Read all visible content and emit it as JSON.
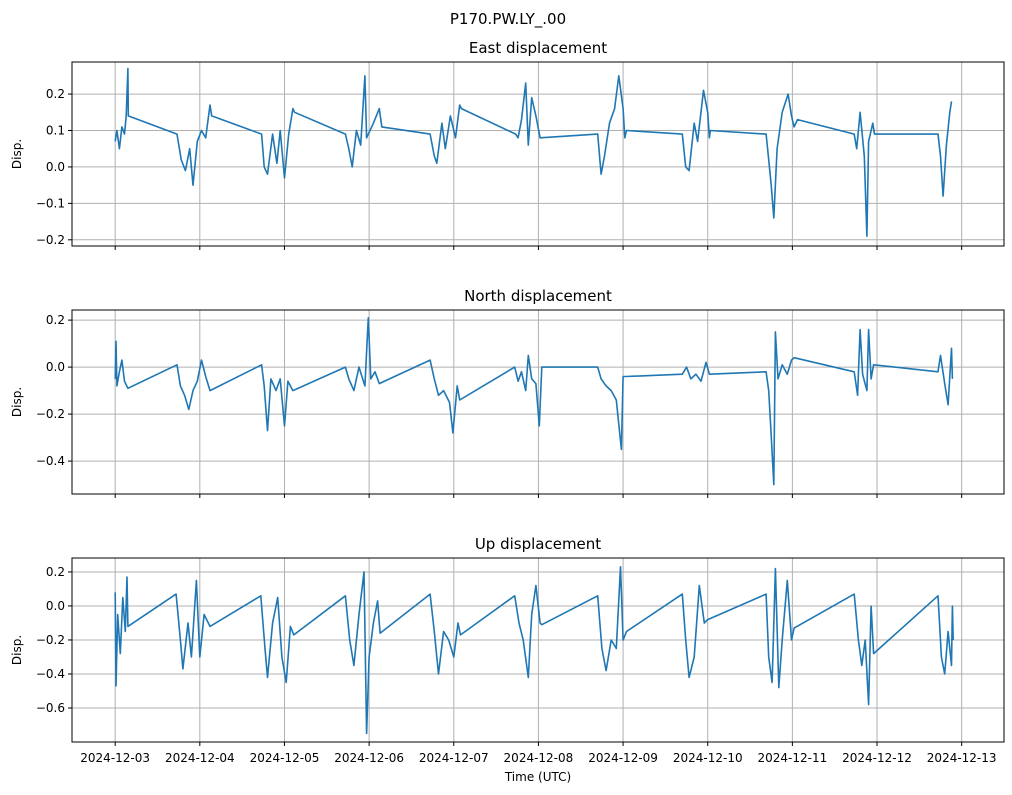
{
  "figure_title": "P170.PW.LY_.00",
  "chart_data": [
    {
      "type": "line",
      "title": "East displacement",
      "ylabel": "Disp.",
      "xlabel": "",
      "x_unit": "days since 2024-12-03 00:00 UTC",
      "xlim": [
        -0.51,
        10.5
      ],
      "ylim": [
        -0.217,
        0.288
      ],
      "yticks": [
        0.2,
        0.1,
        0.0,
        -0.1,
        -0.2
      ],
      "ytick_labels": [
        "0.2",
        "0.1",
        "0.0",
        "−0.1",
        "−0.2"
      ],
      "grid": true,
      "color": "#1f77b4",
      "points": [
        [
          0,
          0.07
        ],
        [
          0.02,
          0.1
        ],
        [
          0.05,
          0.05
        ],
        [
          0.08,
          0.11
        ],
        [
          0.11,
          0.09
        ],
        [
          0.13,
          0.14
        ],
        [
          0.15,
          0.27
        ],
        [
          0.155,
          0.14
        ],
        [
          0.73,
          0.09
        ],
        [
          0.78,
          0.02
        ],
        [
          0.83,
          -0.01
        ],
        [
          0.88,
          0.05
        ],
        [
          0.92,
          -0.05
        ],
        [
          0.97,
          0.07
        ],
        [
          1.02,
          0.1
        ],
        [
          1.07,
          0.08
        ],
        [
          1.12,
          0.17
        ],
        [
          1.14,
          0.14
        ],
        [
          1.73,
          0.09
        ],
        [
          1.76,
          0.0
        ],
        [
          1.8,
          -0.02
        ],
        [
          1.86,
          0.09
        ],
        [
          1.91,
          0.01
        ],
        [
          1.95,
          0.1
        ],
        [
          2.0,
          -0.03
        ],
        [
          2.05,
          0.09
        ],
        [
          2.1,
          0.16
        ],
        [
          2.12,
          0.15
        ],
        [
          2.72,
          0.09
        ],
        [
          2.76,
          0.05
        ],
        [
          2.8,
          0.0
        ],
        [
          2.85,
          0.1
        ],
        [
          2.9,
          0.06
        ],
        [
          2.95,
          0.25
        ],
        [
          2.97,
          0.08
        ],
        [
          3.05,
          0.12
        ],
        [
          3.12,
          0.16
        ],
        [
          3.15,
          0.11
        ],
        [
          3.72,
          0.09
        ],
        [
          3.77,
          0.03
        ],
        [
          3.8,
          0.01
        ],
        [
          3.86,
          0.12
        ],
        [
          3.9,
          0.05
        ],
        [
          3.96,
          0.14
        ],
        [
          4.02,
          0.08
        ],
        [
          4.07,
          0.17
        ],
        [
          4.09,
          0.16
        ],
        [
          4.73,
          0.09
        ],
        [
          4.76,
          0.08
        ],
        [
          4.8,
          0.13
        ],
        [
          4.85,
          0.23
        ],
        [
          4.88,
          0.06
        ],
        [
          4.92,
          0.19
        ],
        [
          4.97,
          0.14
        ],
        [
          5.02,
          0.08
        ],
        [
          5.7,
          0.09
        ],
        [
          5.74,
          -0.02
        ],
        [
          5.78,
          0.03
        ],
        [
          5.84,
          0.12
        ],
        [
          5.9,
          0.16
        ],
        [
          5.95,
          0.25
        ],
        [
          6.0,
          0.16
        ],
        [
          6.02,
          0.08
        ],
        [
          6.04,
          0.1
        ],
        [
          6.7,
          0.09
        ],
        [
          6.74,
          0.0
        ],
        [
          6.78,
          -0.01
        ],
        [
          6.84,
          0.12
        ],
        [
          6.88,
          0.07
        ],
        [
          6.95,
          0.21
        ],
        [
          7.0,
          0.15
        ],
        [
          7.02,
          0.08
        ],
        [
          7.03,
          0.1
        ],
        [
          7.69,
          0.09
        ],
        [
          7.72,
          0.02
        ],
        [
          7.75,
          -0.05
        ],
        [
          7.78,
          -0.14
        ],
        [
          7.82,
          0.05
        ],
        [
          7.88,
          0.15
        ],
        [
          7.95,
          0.2
        ],
        [
          7.99,
          0.14
        ],
        [
          8.02,
          0.11
        ],
        [
          8.06,
          0.13
        ],
        [
          8.73,
          0.09
        ],
        [
          8.76,
          0.05
        ],
        [
          8.8,
          0.15
        ],
        [
          8.85,
          0.03
        ],
        [
          8.88,
          -0.19
        ],
        [
          8.9,
          0.07
        ],
        [
          8.95,
          0.12
        ],
        [
          8.97,
          0.09
        ],
        [
          9.72,
          0.09
        ],
        [
          9.75,
          0.03
        ],
        [
          9.78,
          -0.08
        ],
        [
          9.82,
          0.06
        ],
        [
          9.86,
          0.15
        ],
        [
          9.88,
          0.18
        ]
      ]
    },
    {
      "type": "line",
      "title": "North displacement",
      "ylabel": "Disp.",
      "xlabel": "",
      "x_unit": "days since 2024-12-03 00:00 UTC",
      "xlim": [
        -0.51,
        10.5
      ],
      "ylim": [
        -0.54,
        0.243
      ],
      "yticks": [
        0.2,
        0.0,
        -0.2,
        -0.4
      ],
      "ytick_labels": [
        "0.2",
        "0.0",
        "−0.2",
        "−0.4"
      ],
      "grid": true,
      "color": "#1f77b4",
      "points": [
        [
          0,
          -0.05
        ],
        [
          0.01,
          0.11
        ],
        [
          0.02,
          -0.08
        ],
        [
          0.05,
          -0.02
        ],
        [
          0.08,
          0.03
        ],
        [
          0.11,
          -0.06
        ],
        [
          0.15,
          -0.09
        ],
        [
          0.73,
          0.01
        ],
        [
          0.77,
          -0.08
        ],
        [
          0.82,
          -0.12
        ],
        [
          0.87,
          -0.18
        ],
        [
          0.92,
          -0.1
        ],
        [
          0.97,
          -0.06
        ],
        [
          1.02,
          0.03
        ],
        [
          1.07,
          -0.04
        ],
        [
          1.12,
          -0.1
        ],
        [
          1.73,
          0.01
        ],
        [
          1.76,
          -0.08
        ],
        [
          1.8,
          -0.27
        ],
        [
          1.84,
          -0.05
        ],
        [
          1.9,
          -0.1
        ],
        [
          1.95,
          -0.05
        ],
        [
          2.0,
          -0.25
        ],
        [
          2.04,
          -0.06
        ],
        [
          2.1,
          -0.1
        ],
        [
          2.72,
          0.0
        ],
        [
          2.76,
          -0.05
        ],
        [
          2.82,
          -0.1
        ],
        [
          2.88,
          0.0
        ],
        [
          2.95,
          -0.08
        ],
        [
          2.99,
          0.21
        ],
        [
          3.02,
          -0.05
        ],
        [
          3.07,
          -0.02
        ],
        [
          3.12,
          -0.07
        ],
        [
          3.72,
          0.03
        ],
        [
          3.77,
          -0.05
        ],
        [
          3.82,
          -0.12
        ],
        [
          3.88,
          -0.1
        ],
        [
          3.95,
          -0.15
        ],
        [
          3.99,
          -0.28
        ],
        [
          4.04,
          -0.08
        ],
        [
          4.07,
          -0.14
        ],
        [
          4.72,
          0.0
        ],
        [
          4.76,
          -0.06
        ],
        [
          4.8,
          -0.02
        ],
        [
          4.85,
          -0.1
        ],
        [
          4.88,
          0.05
        ],
        [
          4.92,
          -0.05
        ],
        [
          4.97,
          -0.07
        ],
        [
          5.01,
          -0.25
        ],
        [
          5.04,
          0.0
        ],
        [
          5.7,
          0.0
        ],
        [
          5.74,
          -0.05
        ],
        [
          5.8,
          -0.08
        ],
        [
          5.86,
          -0.1
        ],
        [
          5.92,
          -0.14
        ],
        [
          5.98,
          -0.35
        ],
        [
          6.0,
          -0.04
        ],
        [
          6.04,
          -0.04
        ],
        [
          6.7,
          -0.03
        ],
        [
          6.75,
          0.0
        ],
        [
          6.8,
          -0.05
        ],
        [
          6.86,
          -0.03
        ],
        [
          6.92,
          -0.06
        ],
        [
          6.98,
          0.02
        ],
        [
          7.02,
          -0.03
        ],
        [
          7.69,
          -0.02
        ],
        [
          7.72,
          -0.1
        ],
        [
          7.75,
          -0.29
        ],
        [
          7.78,
          -0.5
        ],
        [
          7.8,
          0.15
        ],
        [
          7.83,
          -0.05
        ],
        [
          7.88,
          0.01
        ],
        [
          7.94,
          -0.03
        ],
        [
          7.99,
          0.03
        ],
        [
          8.02,
          0.04
        ],
        [
          8.73,
          -0.02
        ],
        [
          8.77,
          -0.12
        ],
        [
          8.8,
          0.16
        ],
        [
          8.83,
          -0.03
        ],
        [
          8.88,
          -0.1
        ],
        [
          8.9,
          0.16
        ],
        [
          8.93,
          -0.05
        ],
        [
          8.96,
          0.01
        ],
        [
          9.72,
          -0.02
        ],
        [
          9.75,
          0.05
        ],
        [
          9.8,
          -0.07
        ],
        [
          9.84,
          -0.16
        ],
        [
          9.88,
          0.08
        ],
        [
          9.89,
          -0.05
        ]
      ]
    },
    {
      "type": "line",
      "title": "Up displacement",
      "ylabel": "Disp.",
      "xlabel": "Time (UTC)",
      "x_unit": "days since 2024-12-03 00:00 UTC",
      "xlim": [
        -0.51,
        10.5
      ],
      "ylim": [
        -0.8,
        0.282
      ],
      "yticks": [
        0.2,
        0.0,
        -0.2,
        -0.4,
        -0.6
      ],
      "ytick_labels": [
        "0.2",
        "0.0",
        "−0.2",
        "−0.4",
        "−0.6"
      ],
      "grid": true,
      "color": "#1f77b4",
      "points": [
        [
          0,
          0.08
        ],
        [
          0.01,
          -0.47
        ],
        [
          0.03,
          -0.05
        ],
        [
          0.06,
          -0.28
        ],
        [
          0.09,
          0.05
        ],
        [
          0.12,
          -0.15
        ],
        [
          0.14,
          0.17
        ],
        [
          0.15,
          -0.12
        ],
        [
          0.72,
          0.07
        ],
        [
          0.77,
          -0.2
        ],
        [
          0.8,
          -0.37
        ],
        [
          0.86,
          -0.1
        ],
        [
          0.9,
          -0.3
        ],
        [
          0.96,
          0.15
        ],
        [
          1.0,
          -0.3
        ],
        [
          1.05,
          -0.05
        ],
        [
          1.12,
          -0.12
        ],
        [
          1.72,
          0.06
        ],
        [
          1.77,
          -0.25
        ],
        [
          1.8,
          -0.42
        ],
        [
          1.86,
          -0.1
        ],
        [
          1.92,
          0.05
        ],
        [
          1.97,
          -0.3
        ],
        [
          2.02,
          -0.45
        ],
        [
          2.07,
          -0.12
        ],
        [
          2.11,
          -0.17
        ],
        [
          2.72,
          0.06
        ],
        [
          2.77,
          -0.2
        ],
        [
          2.82,
          -0.35
        ],
        [
          2.88,
          -0.05
        ],
        [
          2.94,
          0.2
        ],
        [
          2.97,
          -0.75
        ],
        [
          3.0,
          -0.3
        ],
        [
          3.05,
          -0.1
        ],
        [
          3.1,
          0.03
        ],
        [
          3.13,
          -0.16
        ],
        [
          3.72,
          0.07
        ],
        [
          3.77,
          -0.15
        ],
        [
          3.82,
          -0.4
        ],
        [
          3.88,
          -0.15
        ],
        [
          3.94,
          -0.2
        ],
        [
          4.0,
          -0.3
        ],
        [
          4.05,
          -0.1
        ],
        [
          4.08,
          -0.17
        ],
        [
          4.72,
          0.06
        ],
        [
          4.77,
          -0.1
        ],
        [
          4.82,
          -0.2
        ],
        [
          4.88,
          -0.42
        ],
        [
          4.92,
          -0.05
        ],
        [
          4.97,
          0.12
        ],
        [
          5.02,
          -0.1
        ],
        [
          5.04,
          -0.11
        ],
        [
          5.7,
          0.06
        ],
        [
          5.75,
          -0.25
        ],
        [
          5.8,
          -0.38
        ],
        [
          5.86,
          -0.2
        ],
        [
          5.92,
          -0.25
        ],
        [
          5.97,
          0.23
        ],
        [
          6.0,
          -0.2
        ],
        [
          6.04,
          -0.15
        ],
        [
          6.7,
          0.07
        ],
        [
          6.74,
          -0.2
        ],
        [
          6.78,
          -0.42
        ],
        [
          6.84,
          -0.3
        ],
        [
          6.9,
          0.12
        ],
        [
          6.96,
          -0.1
        ],
        [
          7.0,
          -0.08
        ],
        [
          7.69,
          0.07
        ],
        [
          7.72,
          -0.3
        ],
        [
          7.76,
          -0.45
        ],
        [
          7.8,
          0.22
        ],
        [
          7.84,
          -0.48
        ],
        [
          7.88,
          -0.2
        ],
        [
          7.94,
          0.15
        ],
        [
          7.99,
          -0.2
        ],
        [
          8.02,
          -0.13
        ],
        [
          8.73,
          0.07
        ],
        [
          8.78,
          -0.2
        ],
        [
          8.82,
          -0.35
        ],
        [
          8.86,
          -0.2
        ],
        [
          8.9,
          -0.58
        ],
        [
          8.93,
          0.0
        ],
        [
          8.96,
          -0.28
        ],
        [
          9.72,
          0.06
        ],
        [
          9.76,
          -0.3
        ],
        [
          9.8,
          -0.4
        ],
        [
          9.84,
          -0.15
        ],
        [
          9.88,
          -0.35
        ],
        [
          9.89,
          0.0
        ],
        [
          9.9,
          -0.2
        ]
      ]
    }
  ],
  "xticks": [
    0,
    1,
    2,
    3,
    4,
    5,
    6,
    7,
    8,
    9,
    10
  ],
  "xtick_labels": [
    "2024-12-03",
    "2024-12-04",
    "2024-12-05",
    "2024-12-06",
    "2024-12-07",
    "2024-12-08",
    "2024-12-09",
    "2024-12-10",
    "2024-12-11",
    "2024-12-12",
    "2024-12-13"
  ]
}
